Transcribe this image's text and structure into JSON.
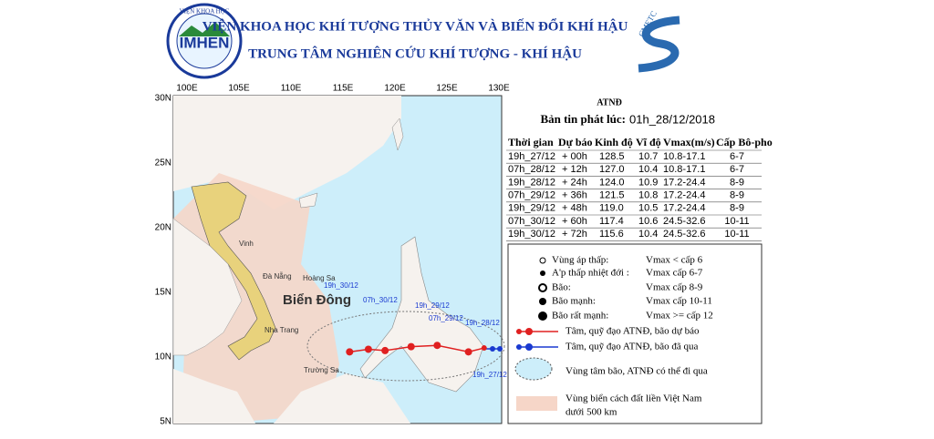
{
  "header": {
    "institute": "VIỆN KHOA HỌC KHÍ TƯỢNG THỦY VĂN VÀ BIẾN ĐỔI KHÍ HẬU",
    "center": "TRUNG TÂM NGHIÊN CỨU KHÍ TƯỢNG - KHÍ HẬU",
    "logo_left": "IMHEN",
    "logo_left_ring": "VIỆN KHOA HỌC",
    "logo_right": "CMETC"
  },
  "bulletin": {
    "title": "ATNĐ",
    "issued_label": "Bản tin phát lúc:",
    "issued": "01h_28/12/2018"
  },
  "table": {
    "columns": [
      "Thời gian",
      "Dự báo",
      "Kinh độ",
      "Vĩ độ",
      "Vmax(m/s)",
      "Cấp Bô-pho"
    ],
    "rows": [
      [
        "19h_27/12",
        "+ 00h",
        "128.5",
        "10.7",
        "10.8-17.1",
        "6-7"
      ],
      [
        "07h_28/12",
        "+ 12h",
        "127.0",
        "10.4",
        "10.8-17.1",
        "6-7"
      ],
      [
        "19h_28/12",
        "+ 24h",
        "124.0",
        "10.9",
        "17.2-24.4",
        "8-9"
      ],
      [
        "07h_29/12",
        "+ 36h",
        "121.5",
        "10.8",
        "17.2-24.4",
        "8-9"
      ],
      [
        "19h_29/12",
        "+ 48h",
        "119.0",
        "10.5",
        "17.2-24.4",
        "8-9"
      ],
      [
        "07h_30/12",
        "+ 60h",
        "117.4",
        "10.6",
        "24.5-32.6",
        "10-11"
      ],
      [
        "19h_30/12",
        "+ 72h",
        "115.6",
        "10.4",
        "24.5-32.6",
        "10-11"
      ]
    ]
  },
  "legend": {
    "items": [
      [
        "Vùng áp thấp:",
        "Vmax < cấp 6"
      ],
      [
        "A'p thấp nhiệt đới :",
        "Vmax cấp 6-7"
      ],
      [
        "Bão:",
        "Vmax cấp 8-9"
      ],
      [
        "Bão mạnh:",
        "Vmax cấp 10-11"
      ],
      [
        "Bão rất mạnh:",
        "Vmax >= cấp 12"
      ]
    ],
    "forecast": "Tâm, quỹ đạo ATNĐ, bão dự báo",
    "past": "Tâm, quỹ đạo ATNĐ, bão đã qua",
    "cone": "Vùng tâm bão, ATNĐ có thể đi qua",
    "zone": [
      "Vùng biển cách đất liền Việt Nam",
      "dưới 500 km"
    ]
  },
  "map": {
    "lon_labels": [
      "100E",
      "105E",
      "110E",
      "115E",
      "120E",
      "125E",
      "130E"
    ],
    "lat_labels": [
      "30N",
      "25N",
      "20N",
      "15N",
      "10N",
      "5N"
    ],
    "places": [
      "Biển Đông",
      "Vinh",
      "Đà Nẵng",
      "Hoàng Sa",
      "Nha Trang",
      "Trường Sa"
    ],
    "track_labels": [
      "19h_30/12",
      "07h_30/12",
      "19h_29/12",
      "07h_29/12",
      "19h_28/12",
      "19h_27/12"
    ]
  }
}
